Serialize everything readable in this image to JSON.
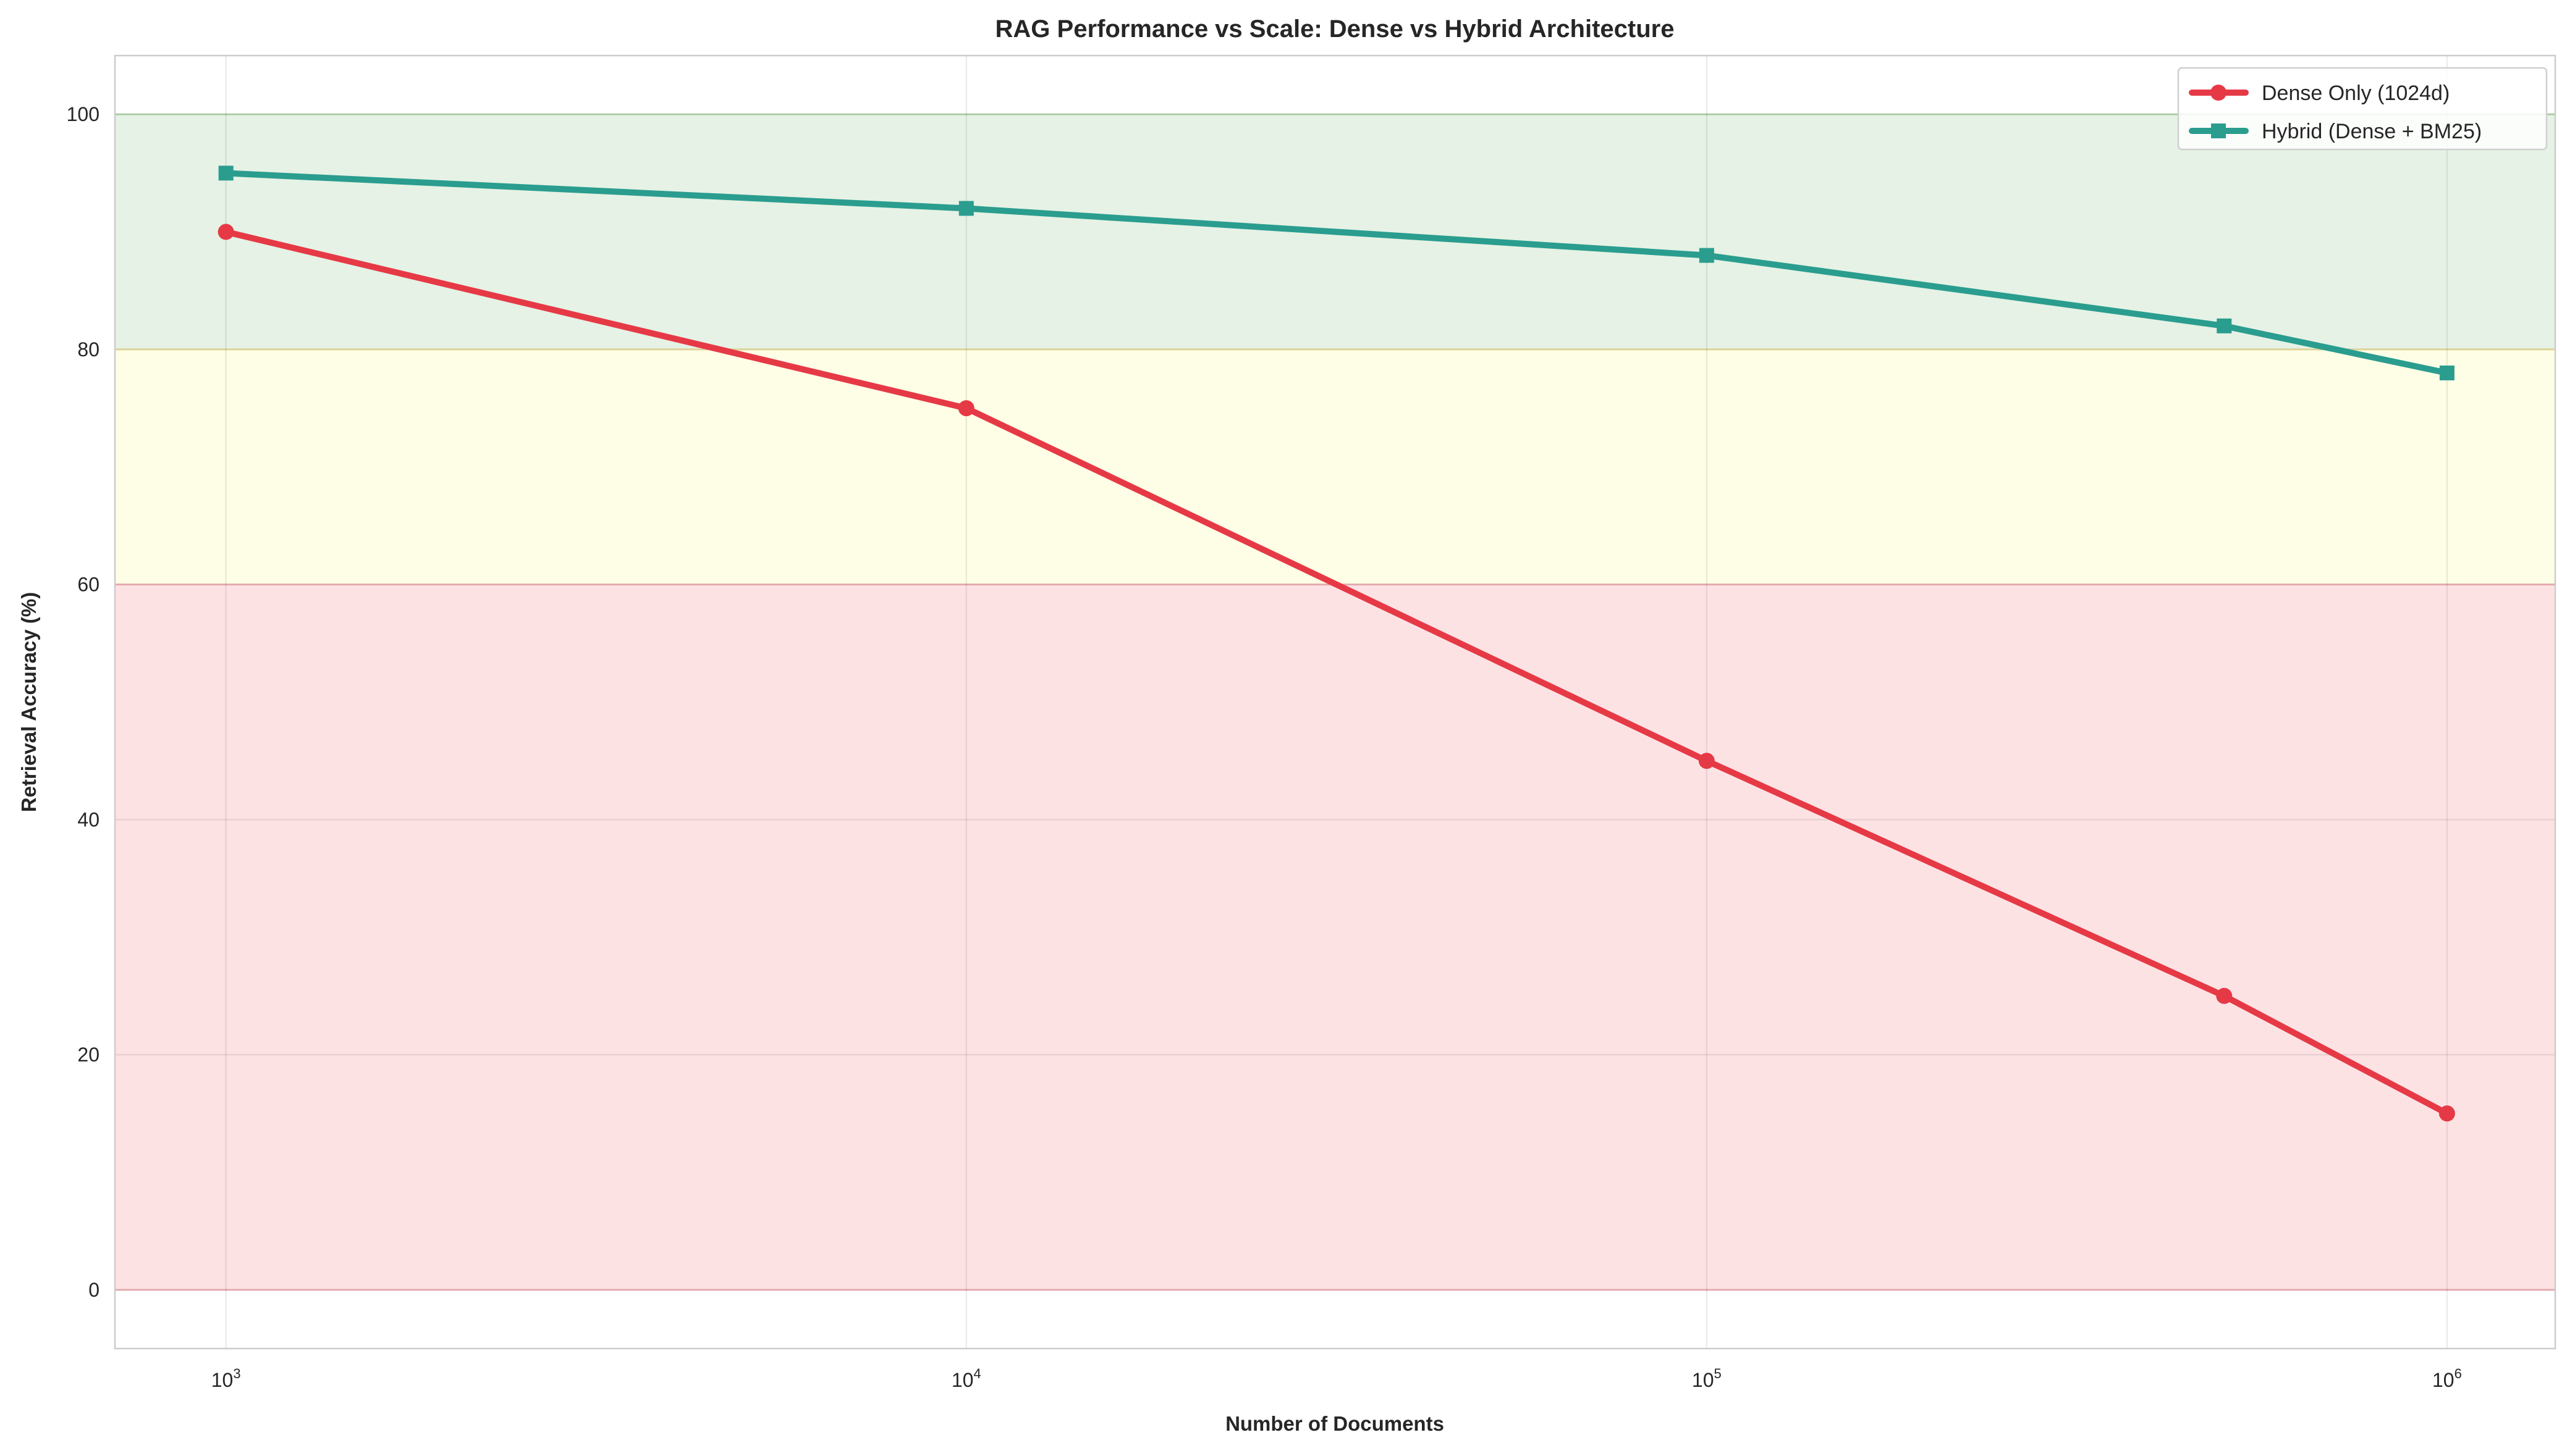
{
  "chart_data": {
    "type": "line",
    "title": "RAG Performance vs Scale: Dense vs Hybrid Architecture",
    "xlabel": "Number of Documents",
    "ylabel": "Retrieval Accuracy (%)",
    "xscale": "log",
    "xlim": [
      708,
      1400000
    ],
    "ylim": [
      -5,
      105
    ],
    "grid": true,
    "legend_position": "top-right",
    "x": [
      1000,
      10000,
      100000,
      500000,
      1000000
    ],
    "x_ticks": [
      {
        "value": 1000,
        "base": "10",
        "exp": "3"
      },
      {
        "value": 10000,
        "base": "10",
        "exp": "4"
      },
      {
        "value": 100000,
        "base": "10",
        "exp": "5"
      },
      {
        "value": 1000000,
        "base": "10",
        "exp": "6"
      }
    ],
    "y_ticks": [
      0,
      20,
      40,
      60,
      80,
      100
    ],
    "y_tick_labels": [
      "0",
      "20",
      "40",
      "60",
      "80",
      "100"
    ],
    "bands": [
      {
        "from": 80,
        "to": 100,
        "color": "#e5f2e5",
        "edge": "#b9dcb0"
      },
      {
        "from": 60,
        "to": 80,
        "color": "#fefee6",
        "edge": "#f0e4a8"
      },
      {
        "from": 0,
        "to": 60,
        "color": "#fde2e4",
        "edge": "#f4b8bc"
      }
    ],
    "series": [
      {
        "name": "Dense Only (1024d)",
        "values": [
          90,
          75,
          45,
          25,
          15
        ],
        "color": "#e63946",
        "marker": "circle"
      },
      {
        "name": "Hybrid (Dense + BM25)",
        "values": [
          95,
          92,
          88,
          82,
          78
        ],
        "color": "#2a9d8f",
        "marker": "square"
      }
    ]
  }
}
